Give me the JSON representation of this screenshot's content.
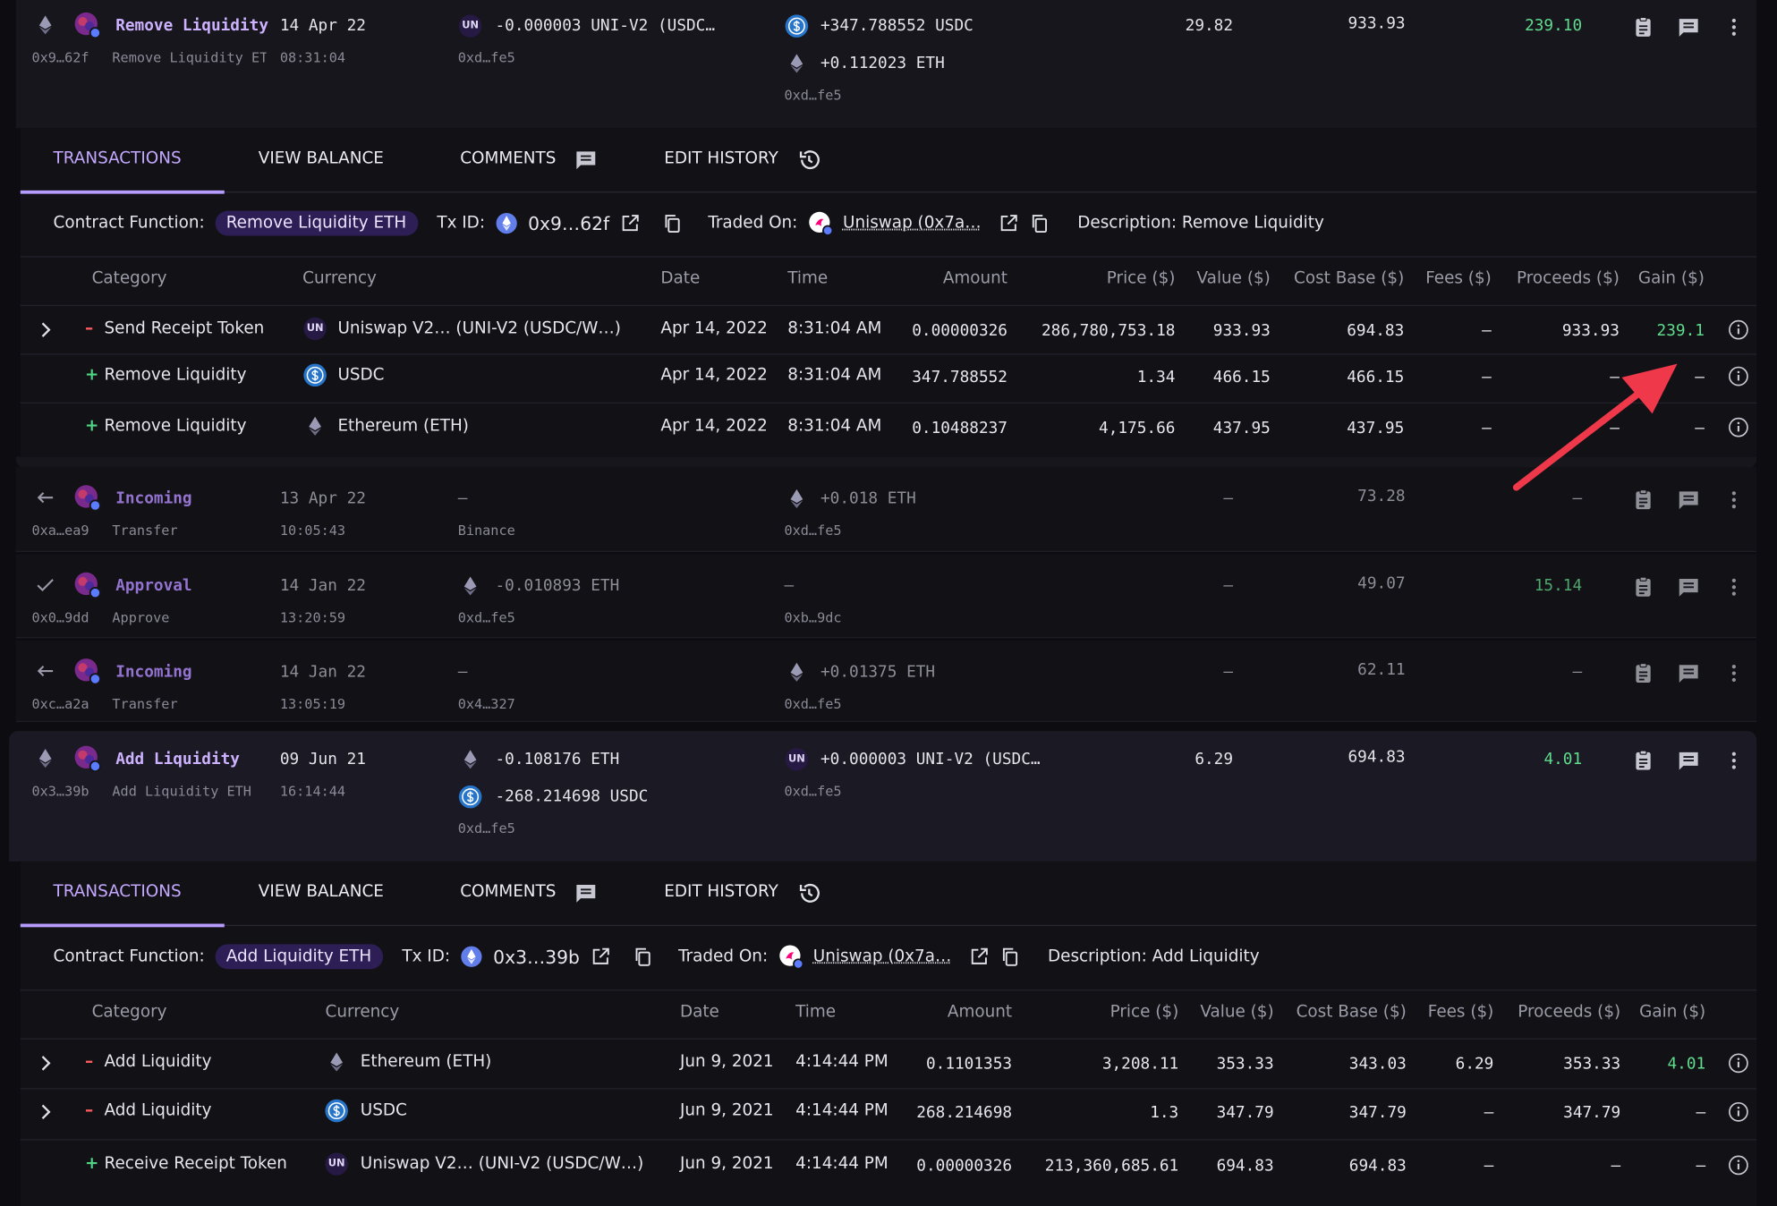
{
  "rows": [
    {
      "title": "Remove Liquidity",
      "subtitle": "Remove Liquidity ETH",
      "hash": "0x9…62f",
      "date": "14 Apr 22",
      "time": "08:31:04",
      "out": [
        {
          "badge": "UN",
          "text": "-0.000003 UNI-V2 (USDC…"
        }
      ],
      "out_addr": "0xd…fe5",
      "in": [
        {
          "text": "+347.788552 USDC"
        },
        {
          "text": "+0.112023 ETH"
        }
      ],
      "in_addr": "0xd…fe5",
      "fee": "29.82",
      "value": "933.93",
      "gain": "239.10",
      "details": {
        "tabs": [
          "TRANSACTIONS",
          "VIEW BALANCE",
          "COMMENTS",
          "EDIT HISTORY"
        ],
        "contract_label": "Contract Function:",
        "contract": "Remove Liquidity ETH",
        "txid_label": "Tx ID:",
        "txid": "0x9…62f",
        "traded_label": "Traded On:",
        "traded": "Uniswap (0x7a…",
        "description": "Description: Remove Liquidity",
        "headers": [
          "Category",
          "Currency",
          "Date",
          "Time",
          "Amount",
          "Price ($)",
          "Value ($)",
          "Cost Base ($)",
          "Fees ($)",
          "Proceeds ($)",
          "Gain ($)"
        ],
        "rows": [
          {
            "sign": "–",
            "category": "Send Receipt Token",
            "badge": "UN",
            "currency": "Uniswap V2… (UNI-V2 (USDC/W…)",
            "date": "Apr 14, 2022",
            "time": "8:31:04 AM",
            "amount": "0.00000326",
            "price": "286,780,753.18",
            "value": "933.93",
            "cost_base": "694.83",
            "fees": "–",
            "proceeds": "933.93",
            "gain": "239.1"
          },
          {
            "sign": "+",
            "category": "Remove Liquidity",
            "currency": "USDC",
            "date": "Apr 14, 2022",
            "time": "8:31:04 AM",
            "amount": "347.788552",
            "price": "1.34",
            "value": "466.15",
            "cost_base": "466.15",
            "fees": "–",
            "proceeds": "–",
            "gain": "–"
          },
          {
            "sign": "+",
            "category": "Remove Liquidity",
            "currency": "Ethereum (ETH)",
            "date": "Apr 14, 2022",
            "time": "8:31:04 AM",
            "amount": "0.10488237",
            "price": "4,175.66",
            "value": "437.95",
            "cost_base": "437.95",
            "fees": "–",
            "proceeds": "–",
            "gain": "–"
          }
        ]
      }
    },
    {
      "title": "Incoming",
      "subtitle": "Transfer",
      "hash": "0xa…ea9",
      "date": "13 Apr 22",
      "time": "10:05:43",
      "out": [
        {
          "text": "–"
        }
      ],
      "out_addr": "Binance",
      "in": [
        {
          "text": "+0.018 ETH"
        }
      ],
      "in_addr": "0xd…fe5",
      "fee": "–",
      "value": "73.28",
      "gain": "–"
    },
    {
      "title": "Approval",
      "subtitle": "Approve",
      "hash": "0x0…9dd",
      "date": "14 Jan 22",
      "time": "13:20:59",
      "out": [
        {
          "text": "-0.010893 ETH"
        }
      ],
      "out_addr": "0xd…fe5",
      "in": [
        {
          "text": "–"
        }
      ],
      "in_addr": "0xb…9dc",
      "fee": "–",
      "value": "49.07",
      "gain": "15.14"
    },
    {
      "title": "Incoming",
      "subtitle": "Transfer",
      "hash": "0xc…a2a",
      "date": "14 Jan 22",
      "time": "13:05:19",
      "out": [
        {
          "text": "–"
        }
      ],
      "out_addr": "0x4…327",
      "in": [
        {
          "text": "+0.01375 ETH"
        }
      ],
      "in_addr": "0xd…fe5",
      "fee": "–",
      "value": "62.11",
      "gain": "–"
    },
    {
      "title": "Add Liquidity",
      "subtitle": "Add Liquidity ETH",
      "hash": "0x3…39b",
      "date": "09 Jun 21",
      "time": "16:14:44",
      "out": [
        {
          "text": "-0.108176 ETH"
        },
        {
          "text": "-268.214698 USDC"
        }
      ],
      "out_addr": "0xd…fe5",
      "in": [
        {
          "badge": "UN",
          "text": "+0.000003 UNI-V2 (USDC…"
        }
      ],
      "in_addr": "0xd…fe5",
      "fee": "6.29",
      "value": "694.83",
      "gain": "4.01",
      "details": {
        "tabs": [
          "TRANSACTIONS",
          "VIEW BALANCE",
          "COMMENTS",
          "EDIT HISTORY"
        ],
        "contract_label": "Contract Function:",
        "contract": "Add Liquidity ETH",
        "txid_label": "Tx ID:",
        "txid": "0x3…39b",
        "traded_label": "Traded On:",
        "traded": "Uniswap (0x7a…",
        "description": "Description: Add Liquidity",
        "headers": [
          "Category",
          "Currency",
          "Date",
          "Time",
          "Amount",
          "Price ($)",
          "Value ($)",
          "Cost Base ($)",
          "Fees ($)",
          "Proceeds ($)",
          "Gain ($)"
        ],
        "rows": [
          {
            "sign": "–",
            "category": "Add Liquidity",
            "currency": "Ethereum (ETH)",
            "date": "Jun 9, 2021",
            "time": "4:14:44 PM",
            "amount": "0.1101353",
            "price": "3,208.11",
            "value": "353.33",
            "cost_base": "343.03",
            "fees": "6.29",
            "proceeds": "353.33",
            "gain": "4.01"
          },
          {
            "sign": "–",
            "category": "Add Liquidity",
            "currency": "USDC",
            "date": "Jun 9, 2021",
            "time": "4:14:44 PM",
            "amount": "268.214698",
            "price": "1.3",
            "value": "347.79",
            "cost_base": "347.79",
            "fees": "–",
            "proceeds": "347.79",
            "gain": "–"
          },
          {
            "sign": "+",
            "category": "Receive Receipt Token",
            "badge": "UN",
            "currency": "Uniswap V2… (UNI-V2 (USDC/W…)",
            "date": "Jun 9, 2021",
            "time": "4:14:44 PM",
            "amount": "0.00000326",
            "price": "213,360,685.61",
            "value": "694.83",
            "cost_base": "694.83",
            "fees": "–",
            "proceeds": "–",
            "gain": "–"
          }
        ]
      }
    }
  ]
}
